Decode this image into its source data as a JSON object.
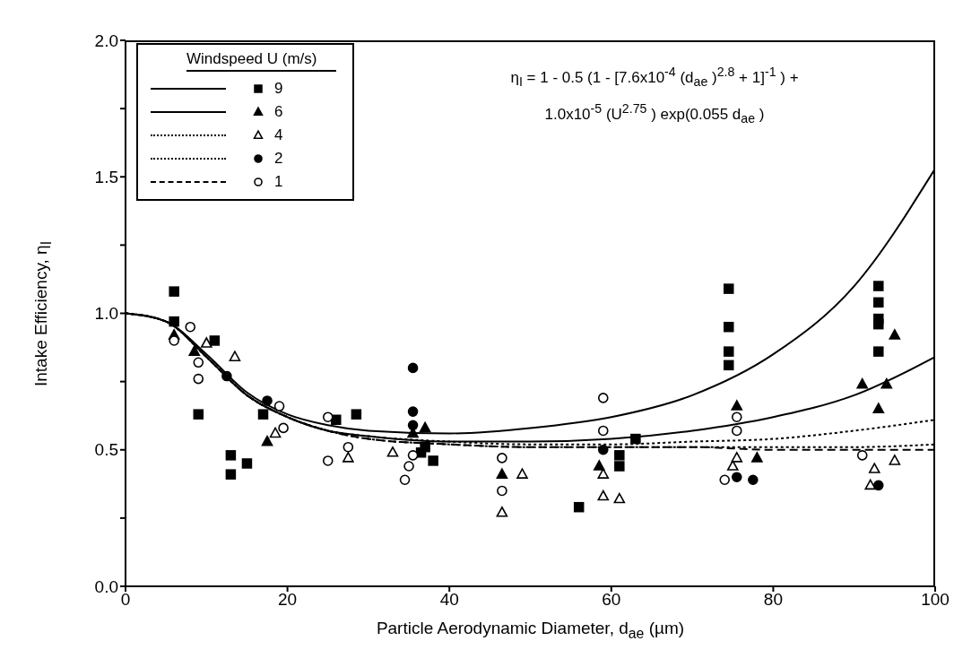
{
  "chart_data": {
    "type": "scatter",
    "xlabel": "Particle Aerodynamic Diameter, d$_{ae}$ (µm)",
    "ylabel": "Intake Efficiency, η$_{I}$",
    "legend_title": "Windspeed U (m/s)",
    "legend": "top left",
    "annotations": [
      "η$_{I}$ = 1 - 0.5 (1 - [7.6x10$^{-4}$ (d$_{ae}$ )$^{2.8}$ + 1]$^{-1}$ ) +",
      "1.0x10$^{-5}$ (U$^{2.75}$ ) exp(0.055 d$_{ae}$ )"
    ],
    "xlim": [
      0,
      100
    ],
    "xticks": [
      0,
      20,
      40,
      60,
      80,
      100
    ],
    "ylim": [
      0,
      2
    ],
    "yticks": [
      {
        "value": 0,
        "label": "0.0"
      },
      {
        "value": 0.25,
        "label": null
      },
      {
        "value": 0.5,
        "label": "0.5"
      },
      {
        "value": 0.75,
        "label": null
      },
      {
        "value": 1,
        "label": "1.0"
      },
      {
        "value": 1.25,
        "label": null
      },
      {
        "value": 1.5,
        "label": "1.5"
      },
      {
        "value": 1.75,
        "label": null
      },
      {
        "value": 2,
        "label": "2.0"
      }
    ],
    "series": [
      {
        "type": "line",
        "line_style": "solid",
        "color": "#000000",
        "x": [
          0,
          5,
          10,
          15,
          20,
          25,
          30,
          40,
          50,
          60,
          70,
          80,
          90,
          100
        ],
        "values": [
          1.0,
          0.97,
          0.85,
          0.71,
          0.63,
          0.59,
          0.57,
          0.56,
          0.58,
          0.62,
          0.7,
          0.85,
          1.1,
          1.53
        ]
      },
      {
        "type": "line",
        "line_style": "solid",
        "color": "#000000",
        "x": [
          0,
          5,
          10,
          15,
          20,
          25,
          30,
          40,
          50,
          60,
          70,
          80,
          90,
          100
        ],
        "values": [
          1.0,
          0.97,
          0.84,
          0.7,
          0.62,
          0.57,
          0.55,
          0.53,
          0.53,
          0.54,
          0.57,
          0.62,
          0.7,
          0.84
        ]
      },
      {
        "type": "line",
        "line_style": "dotted",
        "color": "#000000",
        "x": [
          0,
          5,
          10,
          15,
          20,
          25,
          30,
          40,
          50,
          60,
          70,
          80,
          90,
          100
        ],
        "values": [
          1.0,
          0.97,
          0.84,
          0.7,
          0.62,
          0.57,
          0.55,
          0.53,
          0.52,
          0.52,
          0.53,
          0.54,
          0.57,
          0.61
        ]
      },
      {
        "type": "line",
        "line_style": "dotted",
        "color": "#000000",
        "x": [
          0,
          5,
          10,
          15,
          20,
          25,
          30,
          40,
          50,
          60,
          70,
          80,
          90,
          100
        ],
        "values": [
          1.0,
          0.97,
          0.84,
          0.7,
          0.62,
          0.57,
          0.54,
          0.52,
          0.51,
          0.51,
          0.51,
          0.51,
          0.51,
          0.52
        ]
      },
      {
        "type": "line",
        "line_style": "dashed",
        "color": "#000000",
        "x": [
          0,
          5,
          10,
          15,
          20,
          25,
          30,
          40,
          50,
          60,
          70,
          80,
          90,
          100
        ],
        "values": [
          1.0,
          0.97,
          0.84,
          0.7,
          0.62,
          0.57,
          0.54,
          0.52,
          0.51,
          0.51,
          0.51,
          0.5,
          0.5,
          0.5
        ]
      },
      {
        "name": "9",
        "marker": "square",
        "color": "#000000",
        "x": [
          6,
          6,
          11,
          9,
          13,
          13,
          15,
          17,
          26,
          28.5,
          36.5,
          38,
          37,
          56,
          61,
          61,
          63,
          74.5,
          74.5,
          74.5,
          74.5,
          93,
          93,
          93,
          93,
          93
        ],
        "values": [
          1.08,
          0.97,
          0.9,
          0.63,
          0.48,
          0.41,
          0.45,
          0.63,
          0.61,
          0.63,
          0.49,
          0.46,
          0.51,
          0.29,
          0.44,
          0.48,
          0.54,
          1.09,
          0.95,
          0.86,
          0.81,
          1.1,
          1.04,
          0.98,
          0.96,
          0.86
        ]
      },
      {
        "name": "6",
        "marker": "triangle",
        "color": "#000000",
        "x": [
          6,
          8.5,
          17.5,
          35.5,
          37,
          46.5,
          58.5,
          75.5,
          78,
          91,
          93,
          94,
          95
        ],
        "values": [
          0.92,
          0.86,
          0.53,
          0.56,
          0.58,
          0.41,
          0.44,
          0.66,
          0.47,
          0.74,
          0.65,
          0.74,
          0.92
        ]
      },
      {
        "name": "4",
        "marker": "triangle",
        "color": "#ffffff",
        "x": [
          10,
          13.5,
          18.5,
          27.5,
          33,
          46.5,
          49,
          59,
          59,
          61,
          75,
          75.5,
          92,
          92.5,
          95
        ],
        "values": [
          0.89,
          0.84,
          0.56,
          0.47,
          0.49,
          0.27,
          0.41,
          0.41,
          0.33,
          0.32,
          0.44,
          0.47,
          0.37,
          0.43,
          0.46
        ]
      },
      {
        "name": "2",
        "marker": "circle",
        "color": "#000000",
        "x": [
          12.5,
          17.5,
          35.5,
          35.5,
          35.5,
          59,
          75.5,
          77.5,
          93
        ],
        "values": [
          0.77,
          0.68,
          0.8,
          0.64,
          0.59,
          0.5,
          0.4,
          0.39,
          0.37
        ]
      },
      {
        "name": "1",
        "marker": "circle",
        "color": "#ffffff",
        "x": [
          6,
          8,
          9,
          9,
          19,
          19.5,
          25,
          25,
          27.5,
          34.5,
          35,
          35.5,
          46.5,
          46.5,
          59,
          59,
          74,
          75.5,
          75.5,
          91
        ],
        "values": [
          0.9,
          0.95,
          0.82,
          0.76,
          0.66,
          0.58,
          0.46,
          0.62,
          0.51,
          0.39,
          0.44,
          0.48,
          0.47,
          0.35,
          0.69,
          0.57,
          0.39,
          0.62,
          0.57,
          0.48
        ]
      }
    ]
  }
}
